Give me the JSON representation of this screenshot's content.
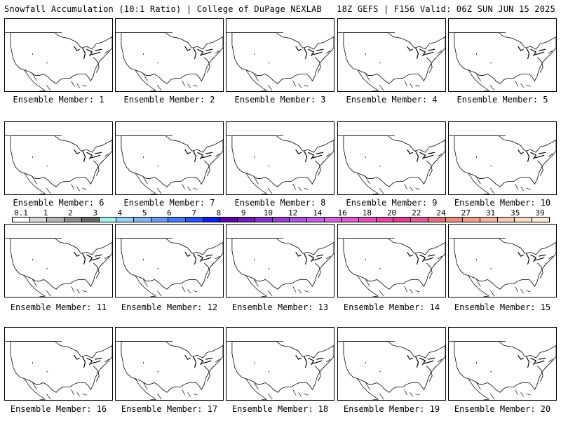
{
  "header": {
    "left_title": "Snowfall Accumulation (10:1 Ratio) | College of DuPage NEXLAB",
    "right_title": "18Z GEFS | F156 Valid: 06Z SUN JUN 15 2025"
  },
  "members": [
    "Ensemble Member: 1",
    "Ensemble Member: 2",
    "Ensemble Member: 3",
    "Ensemble Member: 4",
    "Ensemble Member: 5",
    "Ensemble Member: 6",
    "Ensemble Member: 7",
    "Ensemble Member: 8",
    "Ensemble Member: 9",
    "Ensemble Member: 10",
    "Ensemble Member: 11",
    "Ensemble Member: 12",
    "Ensemble Member: 13",
    "Ensemble Member: 14",
    "Ensemble Member: 15",
    "Ensemble Member: 16",
    "Ensemble Member: 17",
    "Ensemble Member: 18",
    "Ensemble Member: 19",
    "Ensemble Member: 20"
  ],
  "colorbar": {
    "labels": [
      "0.1",
      "1",
      "2",
      "3",
      "4",
      "5",
      "6",
      "7",
      "8",
      "9",
      "10",
      "12",
      "14",
      "16",
      "18",
      "20",
      "22",
      "24",
      "27",
      "31",
      "35",
      "39"
    ],
    "colors": [
      "#ffffff",
      "#d8d8d8",
      "#b4b4b4",
      "#8c8c8c",
      "#686868",
      "#a6f0f0",
      "#96d2f0",
      "#82b4f0",
      "#6a96f0",
      "#4678f0",
      "#2850f0",
      "#0a1ee6",
      "#5a0aa0",
      "#6e1eb4",
      "#8232c4",
      "#963ed0",
      "#aa50d8",
      "#be5ce0",
      "#d264dc",
      "#dc5ac8",
      "#e050b4",
      "#e0469e",
      "#dc3c8c",
      "#dc5a96",
      "#e06e82",
      "#e68c78",
      "#eca08c",
      "#f0b4a0",
      "#f5c8b4",
      "#f8dcc8",
      "#fbe8dc"
    ]
  }
}
